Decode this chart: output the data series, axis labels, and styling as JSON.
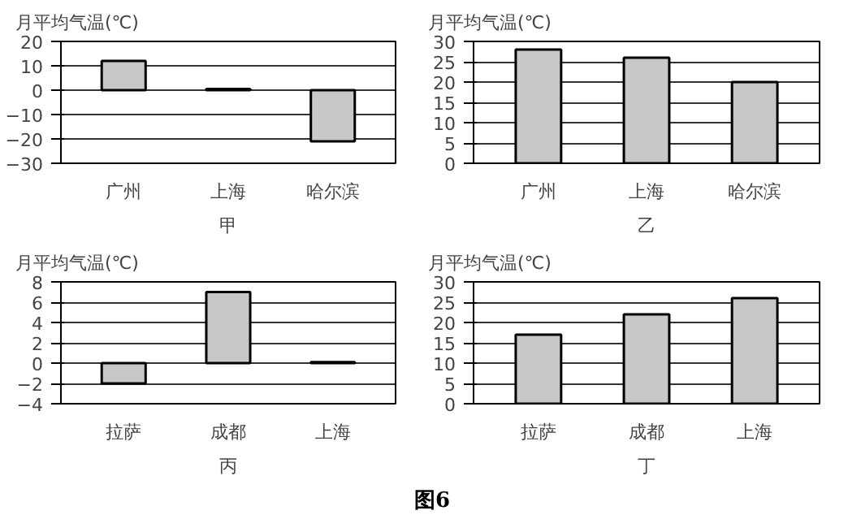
{
  "chart_data": [
    {
      "type": "bar",
      "ylabel": "月平均气温(℃)",
      "xlabel": "甲",
      "categories": [
        "广州",
        "上海",
        "哈尔滨"
      ],
      "values": [
        12,
        0.5,
        -21
      ],
      "color": "#c8c8c8",
      "ylim": [
        -30,
        20
      ],
      "yticks": [
        -30,
        -20,
        -10,
        0,
        10,
        20
      ],
      "grid": "y"
    },
    {
      "type": "bar",
      "ylabel": "月平均气温(℃)",
      "xlabel": "乙",
      "categories": [
        "广州",
        "上海",
        "哈尔滨"
      ],
      "values": [
        28,
        26,
        20
      ],
      "color": "#c8c8c8",
      "ylim": [
        0,
        30
      ],
      "yticks": [
        0,
        5,
        10,
        15,
        20,
        25,
        30
      ],
      "grid": "y"
    },
    {
      "type": "bar",
      "ylabel": "月平均气温(℃)",
      "xlabel": "丙",
      "categories": [
        "拉萨",
        "成都",
        "上海"
      ],
      "values": [
        -2,
        7,
        0.1
      ],
      "color": "#c8c8c8",
      "ylim": [
        -4,
        8
      ],
      "yticks": [
        -4,
        -2,
        0,
        2,
        4,
        6,
        8
      ],
      "grid": "y"
    },
    {
      "type": "bar",
      "ylabel": "月平均气温(℃)",
      "xlabel": "丁",
      "categories": [
        "拉萨",
        "成都",
        "上海"
      ],
      "values": [
        17,
        22,
        26
      ],
      "color": "#c8c8c8",
      "ylim": [
        0,
        30
      ],
      "yticks": [
        0,
        5,
        10,
        15,
        20,
        25,
        30
      ],
      "grid": "y",
      "annotations": [
        "图6"
      ]
    }
  ]
}
